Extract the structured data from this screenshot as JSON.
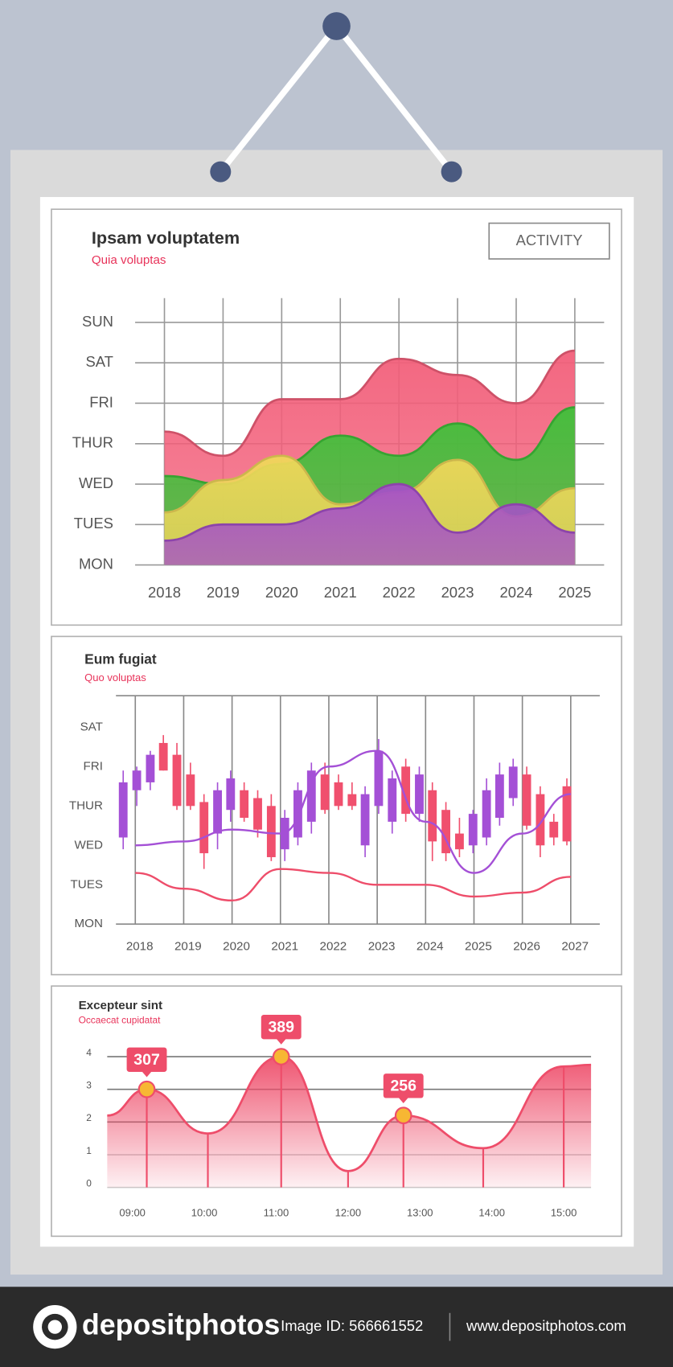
{
  "chart_data": [
    {
      "type": "area",
      "title": "Ipsam voluptatem",
      "subtitle": "Quia voluptas",
      "button": "ACTIVITY",
      "categories": [
        2018,
        2019,
        2020,
        2021,
        2022,
        2023,
        2024,
        2025
      ],
      "ylim": [
        0,
        6.6
      ],
      "yticks": [
        {
          "value": 0,
          "label": "MON"
        },
        {
          "value": 1,
          "label": "TUES"
        },
        {
          "value": 2,
          "label": "WED"
        },
        {
          "value": 3,
          "label": "THUR"
        },
        {
          "value": 4,
          "label": "FRI"
        },
        {
          "value": 5,
          "label": "SAT"
        },
        {
          "value": 6,
          "label": "SUN"
        }
      ],
      "grid": true,
      "series": [
        {
          "color": "#f25f7a",
          "values": [
            3.3,
            2.7,
            4.1,
            4.1,
            5.1,
            4.7,
            4.0,
            5.3
          ]
        },
        {
          "color": "#3fc13a",
          "values": [
            2.2,
            2.0,
            2.5,
            3.2,
            2.7,
            3.5,
            2.6,
            3.9
          ]
        },
        {
          "color": "#f0d75a",
          "values": [
            1.3,
            2.1,
            2.7,
            1.5,
            1.8,
            2.6,
            1.2,
            1.9
          ]
        },
        {
          "color": "#a550c8",
          "values": [
            0.6,
            1.0,
            1.0,
            1.4,
            2.0,
            0.8,
            1.5,
            0.8
          ]
        }
      ]
    },
    {
      "type": "candlestick",
      "title": "Eum fugiat",
      "subtitle": "Quo voluptas",
      "x": [
        2017.75,
        2018.03,
        2018.31,
        2018.58,
        2018.86,
        2019.14,
        2019.42,
        2019.7,
        2019.97,
        2020.25,
        2020.53,
        2020.81,
        2021.09,
        2021.36,
        2021.64,
        2021.92,
        2022.2,
        2022.48,
        2022.75,
        2023.03,
        2023.31,
        2023.59,
        2023.87,
        2024.14,
        2024.42,
        2024.7,
        2024.98,
        2025.26,
        2025.53,
        2025.81,
        2026.09,
        2026.37,
        2026.65,
        2026.92
      ],
      "open": [
        2.2,
        3.4,
        3.6,
        4.6,
        4.3,
        3.8,
        3.1,
        2.3,
        2.9,
        3.4,
        3.2,
        3.0,
        1.9,
        2.2,
        2.6,
        3.8,
        3.6,
        3.3,
        2.0,
        3.0,
        2.6,
        4.0,
        2.8,
        3.4,
        2.9,
        2.3,
        2.0,
        2.2,
        2.7,
        3.2,
        3.8,
        3.3,
        2.6,
        3.5
      ],
      "high": [
        3.9,
        4.0,
        4.4,
        4.8,
        4.6,
        4.1,
        3.3,
        3.6,
        3.9,
        3.6,
        3.4,
        3.3,
        2.9,
        3.6,
        4.1,
        4.1,
        3.8,
        3.6,
        3.5,
        4.7,
        3.9,
        4.2,
        4.0,
        3.6,
        3.1,
        2.7,
        2.9,
        3.7,
        4.1,
        4.2,
        4.0,
        3.5,
        2.8,
        3.7
      ],
      "low": [
        1.9,
        3.0,
        3.4,
        3.9,
        2.9,
        2.9,
        1.4,
        1.9,
        2.6,
        2.6,
        2.2,
        1.6,
        1.6,
        2.0,
        2.3,
        2.8,
        2.9,
        2.9,
        1.7,
        2.8,
        2.3,
        2.6,
        2.6,
        1.6,
        1.6,
        1.7,
        1.8,
        2.0,
        2.5,
        3.0,
        2.4,
        1.7,
        2.0,
        2.0
      ],
      "close": [
        3.6,
        3.9,
        4.3,
        3.9,
        3.0,
        3.0,
        1.8,
        3.4,
        3.7,
        2.7,
        2.4,
        1.7,
        2.7,
        3.4,
        3.9,
        2.9,
        3.0,
        3.0,
        3.3,
        4.4,
        3.7,
        2.8,
        3.8,
        2.1,
        1.8,
        1.9,
        2.8,
        3.4,
        3.8,
        4.0,
        2.5,
        2.0,
        2.2,
        2.1
      ],
      "up_color": "#a450d6",
      "down_color": "#f0506e",
      "xlim": [
        2017.6,
        2027.6
      ],
      "xticks": [
        2018,
        2019,
        2020,
        2021,
        2022,
        2023,
        2024,
        2025,
        2026,
        2027
      ],
      "ylim": [
        0,
        5.8
      ],
      "yticks": [
        {
          "value": 0,
          "label": "MON"
        },
        {
          "value": 1,
          "label": "TUES"
        },
        {
          "value": 2,
          "label": "WED"
        },
        {
          "value": 3,
          "label": "THUR"
        },
        {
          "value": 4,
          "label": "FRI"
        },
        {
          "value": 5,
          "label": "SAT"
        }
      ],
      "grid": true,
      "series": [
        {
          "color": "#a450d6",
          "x": [
            2018,
            2019,
            2020,
            2021,
            2022,
            2023,
            2024,
            2025,
            2026,
            2027
          ],
          "values": [
            2.0,
            2.1,
            2.4,
            2.3,
            4.0,
            4.4,
            2.6,
            1.3,
            2.3,
            3.3
          ]
        },
        {
          "color": "#ee4d6a",
          "x": [
            2018,
            2019,
            2020,
            2021,
            2022,
            2023,
            2024,
            2025,
            2026,
            2027
          ],
          "values": [
            1.3,
            0.9,
            0.6,
            1.4,
            1.3,
            1.0,
            1.0,
            0.7,
            0.8,
            1.2
          ]
        }
      ]
    },
    {
      "type": "area_line",
      "title": "Excepteur sint",
      "subtitle": "Occaecat cupidatat",
      "x": [
        8.65,
        9.2,
        10.05,
        11.07,
        12.0,
        12.77,
        13.88,
        15.0,
        15.38
      ],
      "values": [
        2.2,
        3.0,
        1.65,
        4.0,
        0.5,
        2.2,
        1.2,
        3.7,
        3.75
      ],
      "color": "#ee4d6a",
      "marker_color": "#f7b733",
      "xlim": [
        8.65,
        15.38
      ],
      "xticks": [
        {
          "value": 9,
          "label": "09:00"
        },
        {
          "value": 10,
          "label": "10:00"
        },
        {
          "value": 11,
          "label": "11:00"
        },
        {
          "value": 12,
          "label": "12:00"
        },
        {
          "value": 13,
          "label": "13:00"
        },
        {
          "value": 14,
          "label": "14:00"
        },
        {
          "value": 15,
          "label": "15:00"
        }
      ],
      "ylim": [
        0,
        4
      ],
      "yticks": [
        0,
        1,
        2,
        3,
        4
      ],
      "grid": true,
      "annotations": [
        {
          "x": 9.2,
          "y": 3.0,
          "text": "307"
        },
        {
          "x": 11.07,
          "y": 4.0,
          "text": "389"
        },
        {
          "x": 12.77,
          "y": 2.2,
          "text": "256"
        }
      ]
    }
  ],
  "footer": {
    "brand": "depositphotos",
    "image_id": "Image ID: 566661552",
    "url": "www.depositphotos.com"
  }
}
